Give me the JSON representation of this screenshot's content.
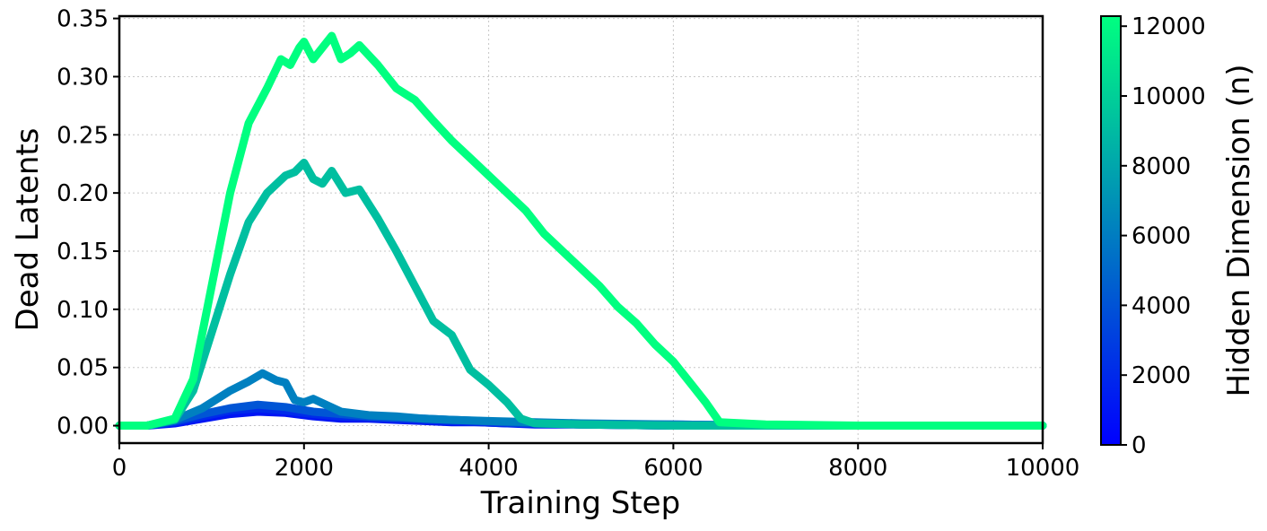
{
  "chart_data": {
    "type": "line",
    "xlabel": "Training Step",
    "ylabel": "Dead Latents",
    "xlim": [
      0,
      10000
    ],
    "ylim": [
      -0.015,
      0.352
    ],
    "xticks": [
      0,
      2000,
      4000,
      6000,
      8000,
      10000
    ],
    "yticks": [
      0.0,
      0.05,
      0.1,
      0.15,
      0.2,
      0.25,
      0.3,
      0.35
    ],
    "ytick_labels": [
      "0.00",
      "0.05",
      "0.10",
      "0.15",
      "0.20",
      "0.25",
      "0.30",
      "0.35"
    ],
    "grid": true,
    "colorbar": {
      "label": "Hidden Dimension (n)",
      "range": [
        0,
        12288
      ],
      "ticks": [
        0,
        2000,
        4000,
        6000,
        8000,
        10000,
        12000
      ],
      "colormap": "winter",
      "color_low": "#0000ff",
      "color_high": "#00ff80"
    },
    "series": [
      {
        "n": 1024,
        "x": [
          0,
          300,
          600,
          900,
          1200,
          1500,
          1800,
          2100,
          2400,
          2700,
          3000,
          3300,
          3600,
          3900,
          4200,
          4500,
          5000,
          6000,
          7000,
          8000,
          9000,
          10000
        ],
        "y": [
          0,
          0,
          0.002,
          0.006,
          0.01,
          0.012,
          0.011,
          0.008,
          0.006,
          0.006,
          0.005,
          0.004,
          0.003,
          0.003,
          0.002,
          0.001,
          0.001,
          0,
          0,
          0,
          0,
          0
        ]
      },
      {
        "n": 2048,
        "x": [
          0,
          300,
          600,
          900,
          1200,
          1500,
          1800,
          2100,
          2400,
          2700,
          3000,
          3300,
          3600,
          3900,
          4200,
          4500,
          5000,
          6000,
          7000,
          8000,
          9000,
          10000
        ],
        "y": [
          0,
          0,
          0.003,
          0.008,
          0.013,
          0.015,
          0.013,
          0.01,
          0.008,
          0.007,
          0.006,
          0.005,
          0.004,
          0.003,
          0.002,
          0.002,
          0.001,
          0,
          0,
          0,
          0,
          0
        ]
      },
      {
        "n": 4096,
        "x": [
          0,
          300,
          600,
          900,
          1200,
          1500,
          1800,
          2100,
          2400,
          2700,
          3000,
          3300,
          3600,
          3900,
          4200,
          4500,
          5000,
          6000,
          7000,
          8000,
          9000,
          10000
        ],
        "y": [
          0,
          0,
          0.004,
          0.01,
          0.015,
          0.018,
          0.016,
          0.012,
          0.01,
          0.008,
          0.007,
          0.006,
          0.005,
          0.004,
          0.003,
          0.002,
          0.001,
          0.001,
          0,
          0,
          0,
          0
        ]
      },
      {
        "n": 6144,
        "x": [
          0,
          300,
          600,
          900,
          1200,
          1400,
          1550,
          1700,
          1800,
          1900,
          2000,
          2100,
          2400,
          2700,
          3000,
          3300,
          3600,
          4000,
          4500,
          5000,
          6000,
          7000,
          8000,
          9000,
          10000
        ],
        "y": [
          0,
          0,
          0.005,
          0.015,
          0.03,
          0.038,
          0.045,
          0.039,
          0.037,
          0.022,
          0.02,
          0.023,
          0.012,
          0.009,
          0.008,
          0.006,
          0.005,
          0.004,
          0.003,
          0.002,
          0.001,
          0,
          0,
          0,
          0
        ]
      },
      {
        "n": 9216,
        "x": [
          0,
          300,
          600,
          800,
          1000,
          1200,
          1400,
          1600,
          1800,
          1900,
          2000,
          2100,
          2200,
          2300,
          2450,
          2600,
          2800,
          3000,
          3200,
          3400,
          3600,
          3800,
          4000,
          4200,
          4350,
          4500,
          5000,
          6000,
          7000,
          8000,
          9000,
          10000
        ],
        "y": [
          0,
          0,
          0.005,
          0.03,
          0.08,
          0.13,
          0.175,
          0.2,
          0.215,
          0.218,
          0.226,
          0.212,
          0.208,
          0.219,
          0.2,
          0.203,
          0.178,
          0.15,
          0.12,
          0.09,
          0.078,
          0.048,
          0.035,
          0.02,
          0.006,
          0.002,
          0.001,
          0,
          0,
          0,
          0,
          0
        ]
      },
      {
        "n": 12288,
        "x": [
          0,
          300,
          600,
          800,
          1000,
          1200,
          1400,
          1600,
          1750,
          1850,
          1950,
          2000,
          2100,
          2200,
          2300,
          2400,
          2500,
          2600,
          2800,
          3000,
          3200,
          3400,
          3600,
          3800,
          4000,
          4200,
          4400,
          4600,
          4800,
          5000,
          5200,
          5400,
          5600,
          5800,
          6000,
          6200,
          6350,
          6500,
          7000,
          8000,
          9000,
          10000
        ],
        "y": [
          0,
          0,
          0.006,
          0.04,
          0.12,
          0.2,
          0.26,
          0.29,
          0.315,
          0.31,
          0.325,
          0.33,
          0.315,
          0.325,
          0.335,
          0.315,
          0.32,
          0.327,
          0.31,
          0.29,
          0.28,
          0.262,
          0.245,
          0.23,
          0.215,
          0.2,
          0.185,
          0.165,
          0.15,
          0.135,
          0.12,
          0.102,
          0.088,
          0.07,
          0.055,
          0.035,
          0.02,
          0.003,
          0.001,
          0,
          0,
          0
        ]
      }
    ]
  }
}
